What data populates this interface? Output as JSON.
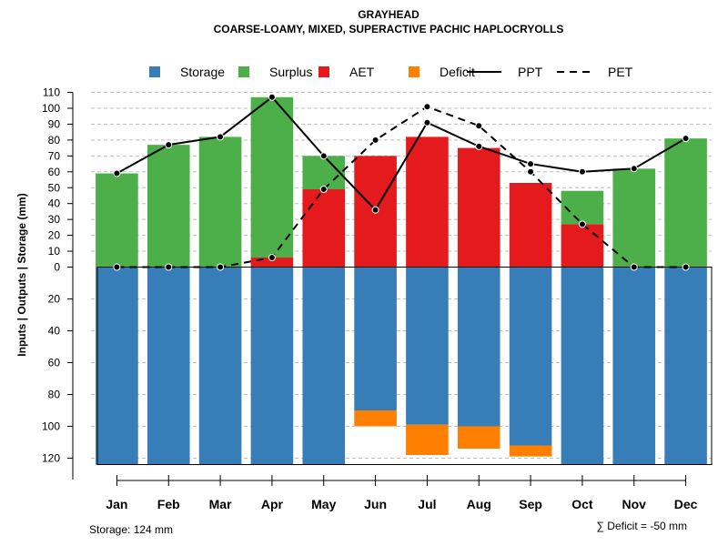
{
  "chart_data": {
    "type": "bar",
    "title": "GRAYHEAD",
    "subtitle": "COARSE-LOAMY, MIXED, SUPERACTIVE PACHIC HAPLOCRYOLLS",
    "ylabel": "Inputs | Outputs | Storage    (mm)",
    "categories": [
      "Jan",
      "Feb",
      "Mar",
      "Apr",
      "May",
      "Jun",
      "Jul",
      "Aug",
      "Sep",
      "Oct",
      "Nov",
      "Dec"
    ],
    "ylim_upper": [
      0,
      110
    ],
    "ylim_lower": [
      0,
      124
    ],
    "yticks_upper": [
      "110",
      "100",
      "90",
      "80",
      "70",
      "60",
      "50",
      "40",
      "30",
      "20",
      "10",
      "0"
    ],
    "yticks_upper_values": [
      110,
      100,
      90,
      80,
      70,
      60,
      50,
      40,
      30,
      20,
      10,
      0
    ],
    "yticks_lower": [
      "20",
      "40",
      "60",
      "80",
      "100",
      "120"
    ],
    "yticks_lower_values": [
      20,
      40,
      60,
      80,
      100,
      120
    ],
    "grid": true,
    "legend_position": "top",
    "legend": [
      {
        "label": "Storage",
        "kind": "box",
        "color": "#377eb8"
      },
      {
        "label": "Surplus",
        "kind": "box",
        "color": "#4daf4a"
      },
      {
        "label": "AET",
        "kind": "box",
        "color": "#e41a1c"
      },
      {
        "label": "Deficit",
        "kind": "box",
        "color": "#ff7f00"
      },
      {
        "label": "PPT",
        "kind": "solid",
        "color": "#000000"
      },
      {
        "label": "PET",
        "kind": "dashed",
        "color": "#000000"
      }
    ],
    "series": [
      {
        "name": "Storage",
        "values": [
          124,
          124,
          124,
          124,
          124,
          90,
          99,
          100,
          112,
          124,
          124,
          124
        ]
      },
      {
        "name": "Deficit",
        "values": [
          0,
          0,
          0,
          0,
          0,
          10,
          19,
          14,
          7,
          0,
          0,
          0
        ]
      },
      {
        "name": "Surplus",
        "values": [
          59,
          77,
          82,
          101,
          21,
          0,
          0,
          0,
          0,
          21,
          62,
          81
        ]
      },
      {
        "name": "AET",
        "values": [
          0,
          0,
          0,
          6,
          49,
          70,
          82,
          75,
          53,
          27,
          0,
          0
        ]
      },
      {
        "name": "PPT",
        "values": [
          59,
          77,
          82,
          107,
          70,
          36,
          91,
          76,
          65,
          60,
          62,
          81
        ]
      },
      {
        "name": "PET",
        "values": [
          0,
          0,
          0,
          6,
          49,
          80,
          101,
          89,
          60,
          27,
          0,
          0
        ]
      }
    ],
    "colors": {
      "storage": "#377eb8",
      "surplus": "#4daf4a",
      "aet": "#e41a1c",
      "deficit": "#ff7f00",
      "line": "#000000",
      "grid": "#bebebe"
    }
  },
  "footer": {
    "storage_note": "Storage: 124 mm",
    "deficit_note": "∑ Deficit = -50 mm"
  }
}
